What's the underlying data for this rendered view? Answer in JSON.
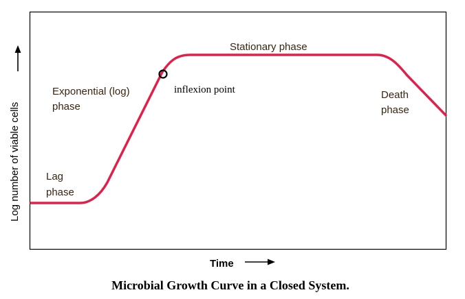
{
  "chart_data": {
    "type": "line",
    "title": "Microbial Growth Curve in a Closed System.",
    "xlabel": "Time",
    "ylabel": "Log number of viable cells",
    "phases": {
      "lag": [
        "Lag",
        "phase"
      ],
      "exponential": [
        "Exponential (log)",
        "phase"
      ],
      "stationary": [
        "Stationary phase"
      ],
      "death": [
        "Death",
        "phase"
      ]
    },
    "annotations": {
      "inflexion_point": "inflexion point"
    }
  },
  "colors": {
    "curve": "#e0204a",
    "axis_frame": "#000000",
    "phase_text": "#3a2410"
  }
}
